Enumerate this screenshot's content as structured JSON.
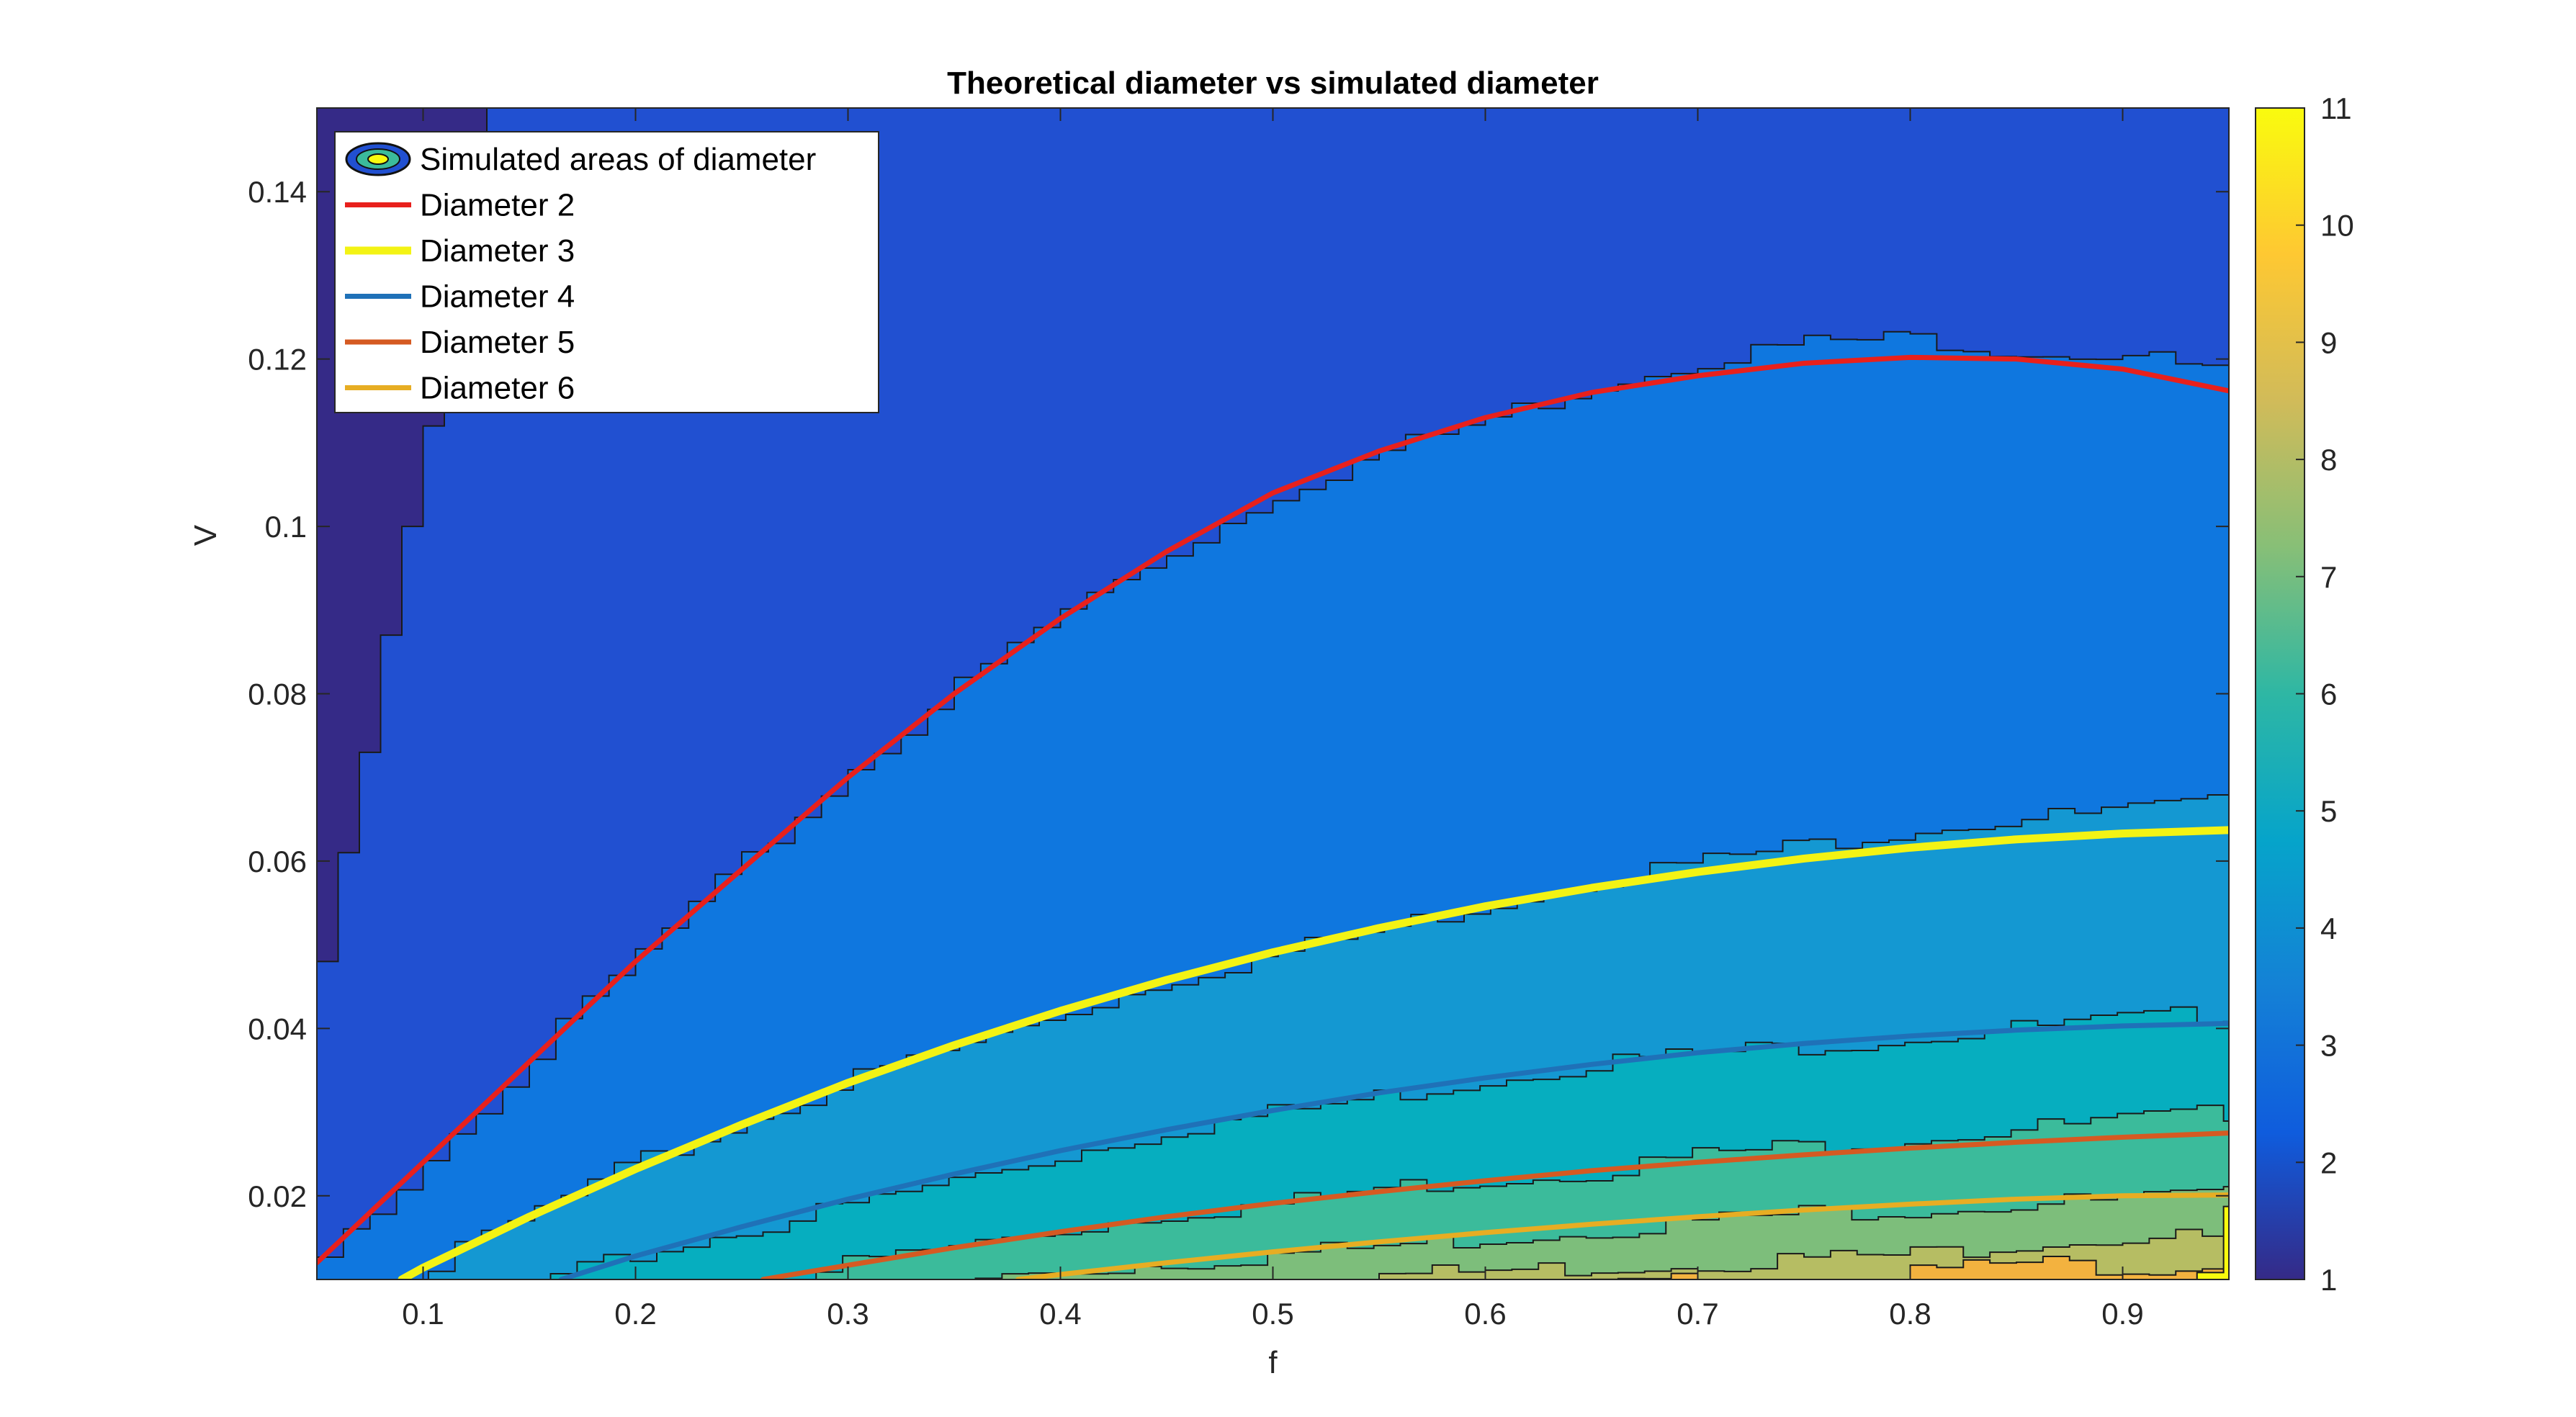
{
  "chart_data": {
    "type": "contourf",
    "title": "Theoretical diameter vs simulated diameter",
    "xlabel": "f",
    "ylabel": "V",
    "xlim": [
      0.05,
      0.95
    ],
    "ylim": [
      0.01,
      0.15
    ],
    "x_ticks": [
      "0.1",
      "0.2",
      "0.3",
      "0.4",
      "0.5",
      "0.6",
      "0.7",
      "0.8",
      "0.9"
    ],
    "x_tick_values": [
      0.1,
      0.2,
      0.3,
      0.4,
      0.5,
      0.6,
      0.7,
      0.8,
      0.9
    ],
    "y_ticks": [
      "0.02",
      "0.04",
      "0.06",
      "0.08",
      "0.1",
      "0.12",
      "0.14"
    ],
    "y_tick_values": [
      0.02,
      0.04,
      0.06,
      0.08,
      0.1,
      0.12,
      0.14
    ],
    "colorbar": {
      "ticks": [
        "1",
        "2",
        "3",
        "4",
        "5",
        "6",
        "7",
        "8",
        "9",
        "10",
        "11"
      ],
      "tick_values": [
        1,
        2,
        3,
        4,
        5,
        6,
        7,
        8,
        9,
        10,
        11
      ],
      "range": [
        1,
        11
      ],
      "colormap": "parula"
    },
    "contour_levels": [
      {
        "level": 1,
        "color": "#352a87"
      },
      {
        "level": 2,
        "color": "#2150d1"
      },
      {
        "level": 3,
        "color": "#0f77df"
      },
      {
        "level": 4,
        "color": "#1498d2"
      },
      {
        "level": 5,
        "color": "#06aebf"
      },
      {
        "level": 6,
        "color": "#3bbb9b"
      },
      {
        "level": 7,
        "color": "#7dbe7b"
      },
      {
        "level": 8,
        "color": "#b6bd63"
      },
      {
        "level": 9,
        "color": "#f3b23f"
      },
      {
        "level": 10,
        "color": "#f7d52c"
      },
      {
        "level": 11,
        "color": "#f9fb0e"
      }
    ],
    "region_boundaries": [
      {
        "level": 2,
        "points": [
          [
            0.05,
            0.048
          ],
          [
            0.06,
            0.061
          ],
          [
            0.07,
            0.073
          ],
          [
            0.08,
            0.087
          ],
          [
            0.09,
            0.1
          ],
          [
            0.1,
            0.112
          ],
          [
            0.11,
            0.127
          ],
          [
            0.12,
            0.14
          ],
          [
            0.13,
            0.15
          ]
        ]
      },
      {
        "level": 3,
        "points": [
          [
            0.05,
            0.012
          ],
          [
            0.1,
            0.025
          ],
          [
            0.15,
            0.037
          ],
          [
            0.2,
            0.049
          ],
          [
            0.25,
            0.06
          ],
          [
            0.3,
            0.071
          ],
          [
            0.35,
            0.081
          ],
          [
            0.4,
            0.09
          ],
          [
            0.45,
            0.097
          ],
          [
            0.5,
            0.104
          ],
          [
            0.55,
            0.109
          ],
          [
            0.6,
            0.113
          ],
          [
            0.65,
            0.117
          ],
          [
            0.7,
            0.12
          ],
          [
            0.75,
            0.122
          ],
          [
            0.8,
            0.1225
          ],
          [
            0.85,
            0.121
          ],
          [
            0.9,
            0.1205
          ],
          [
            0.95,
            0.118
          ]
        ]
      },
      {
        "level": 4,
        "points": [
          [
            0.09,
            0.01
          ],
          [
            0.15,
            0.018
          ],
          [
            0.2,
            0.024
          ],
          [
            0.25,
            0.029
          ],
          [
            0.3,
            0.034
          ],
          [
            0.35,
            0.038
          ],
          [
            0.4,
            0.042
          ],
          [
            0.45,
            0.046
          ],
          [
            0.5,
            0.049
          ],
          [
            0.55,
            0.052
          ],
          [
            0.6,
            0.055
          ],
          [
            0.65,
            0.058
          ],
          [
            0.7,
            0.06
          ],
          [
            0.75,
            0.062
          ],
          [
            0.8,
            0.064
          ],
          [
            0.85,
            0.065
          ],
          [
            0.9,
            0.066
          ],
          [
            0.95,
            0.067
          ]
        ]
      },
      {
        "level": 5,
        "points": [
          [
            0.16,
            0.01
          ],
          [
            0.2,
            0.013
          ],
          [
            0.25,
            0.016
          ],
          [
            0.3,
            0.019
          ],
          [
            0.35,
            0.022
          ],
          [
            0.4,
            0.025
          ],
          [
            0.45,
            0.028
          ],
          [
            0.5,
            0.03
          ],
          [
            0.55,
            0.032
          ],
          [
            0.6,
            0.034
          ],
          [
            0.65,
            0.036
          ],
          [
            0.7,
            0.037
          ],
          [
            0.75,
            0.038
          ],
          [
            0.8,
            0.039
          ],
          [
            0.85,
            0.04
          ],
          [
            0.9,
            0.041
          ],
          [
            0.95,
            0.042
          ]
        ]
      },
      {
        "level": 6,
        "points": [
          [
            0.26,
            0.01
          ],
          [
            0.3,
            0.012
          ],
          [
            0.35,
            0.014
          ],
          [
            0.4,
            0.016
          ],
          [
            0.45,
            0.018
          ],
          [
            0.5,
            0.019
          ],
          [
            0.55,
            0.021
          ],
          [
            0.6,
            0.022
          ],
          [
            0.65,
            0.023
          ],
          [
            0.7,
            0.025
          ],
          [
            0.75,
            0.026
          ],
          [
            0.8,
            0.027
          ],
          [
            0.85,
            0.028
          ],
          [
            0.9,
            0.029
          ],
          [
            0.95,
            0.03
          ]
        ]
      },
      {
        "level": 7,
        "points": [
          [
            0.36,
            0.01
          ],
          [
            0.4,
            0.011
          ],
          [
            0.45,
            0.012
          ],
          [
            0.5,
            0.013
          ],
          [
            0.55,
            0.014
          ],
          [
            0.6,
            0.015
          ],
          [
            0.65,
            0.016
          ],
          [
            0.7,
            0.017
          ],
          [
            0.75,
            0.018
          ],
          [
            0.8,
            0.0185
          ],
          [
            0.85,
            0.019
          ],
          [
            0.9,
            0.0195
          ],
          [
            0.95,
            0.02
          ]
        ]
      },
      {
        "level": 8,
        "points": [
          [
            0.5,
            0.01
          ],
          [
            0.55,
            0.0105
          ],
          [
            0.6,
            0.011
          ],
          [
            0.65,
            0.0115
          ],
          [
            0.7,
            0.012
          ],
          [
            0.75,
            0.0125
          ],
          [
            0.8,
            0.013
          ],
          [
            0.85,
            0.0145
          ],
          [
            0.9,
            0.015
          ],
          [
            0.95,
            0.015
          ]
        ]
      },
      {
        "level": 9,
        "points": [
          [
            0.65,
            0.01
          ],
          [
            0.7,
            0.01
          ],
          [
            0.75,
            0.0105
          ],
          [
            0.8,
            0.011
          ],
          [
            0.85,
            0.012
          ],
          [
            0.9,
            0.0115
          ],
          [
            0.95,
            0.012
          ]
        ]
      },
      {
        "level": 11,
        "points": [
          [
            0.935,
            0.01
          ],
          [
            0.94,
            0.014
          ],
          [
            0.945,
            0.018
          ],
          [
            0.95,
            0.019
          ]
        ]
      }
    ],
    "series": [
      {
        "name": "Diameter 2",
        "color": "#e8201c",
        "points": [
          [
            0.05,
            0.012
          ],
          [
            0.1,
            0.024
          ],
          [
            0.15,
            0.036
          ],
          [
            0.2,
            0.048
          ],
          [
            0.25,
            0.059
          ],
          [
            0.3,
            0.07
          ],
          [
            0.35,
            0.08
          ],
          [
            0.4,
            0.089
          ],
          [
            0.45,
            0.097
          ],
          [
            0.5,
            0.104
          ],
          [
            0.55,
            0.109
          ],
          [
            0.6,
            0.113
          ],
          [
            0.65,
            0.116
          ],
          [
            0.7,
            0.118
          ],
          [
            0.75,
            0.1195
          ],
          [
            0.8,
            0.1202
          ],
          [
            0.85,
            0.12
          ],
          [
            0.9,
            0.1188
          ],
          [
            0.95,
            0.1162
          ]
        ]
      },
      {
        "name": "Diameter 3",
        "color": "#f3f314",
        "points": [
          [
            0.09,
            0.01
          ],
          [
            0.1,
            0.0114
          ],
          [
            0.15,
            0.0175
          ],
          [
            0.2,
            0.0232
          ],
          [
            0.25,
            0.0285
          ],
          [
            0.3,
            0.0335
          ],
          [
            0.35,
            0.038
          ],
          [
            0.4,
            0.0421
          ],
          [
            0.45,
            0.0458
          ],
          [
            0.5,
            0.0491
          ],
          [
            0.55,
            0.052
          ],
          [
            0.6,
            0.0546
          ],
          [
            0.65,
            0.0568
          ],
          [
            0.7,
            0.0587
          ],
          [
            0.75,
            0.0603
          ],
          [
            0.8,
            0.0616
          ],
          [
            0.85,
            0.0626
          ],
          [
            0.9,
            0.0633
          ],
          [
            0.95,
            0.0637
          ]
        ]
      },
      {
        "name": "Diameter 4",
        "color": "#1f71b8",
        "points": [
          [
            0.165,
            0.01
          ],
          [
            0.2,
            0.0128
          ],
          [
            0.25,
            0.0163
          ],
          [
            0.3,
            0.0196
          ],
          [
            0.35,
            0.0226
          ],
          [
            0.4,
            0.0254
          ],
          [
            0.45,
            0.0279
          ],
          [
            0.5,
            0.0302
          ],
          [
            0.55,
            0.0323
          ],
          [
            0.6,
            0.0341
          ],
          [
            0.65,
            0.0357
          ],
          [
            0.7,
            0.0371
          ],
          [
            0.75,
            0.0382
          ],
          [
            0.8,
            0.0391
          ],
          [
            0.85,
            0.0398
          ],
          [
            0.9,
            0.0403
          ],
          [
            0.95,
            0.0406
          ]
        ]
      },
      {
        "name": "Diameter 5",
        "color": "#d55a22",
        "points": [
          [
            0.26,
            0.01
          ],
          [
            0.3,
            0.0117
          ],
          [
            0.35,
            0.0138
          ],
          [
            0.4,
            0.0157
          ],
          [
            0.45,
            0.0175
          ],
          [
            0.5,
            0.0191
          ],
          [
            0.55,
            0.0205
          ],
          [
            0.6,
            0.0218
          ],
          [
            0.65,
            0.023
          ],
          [
            0.7,
            0.024
          ],
          [
            0.75,
            0.0249
          ],
          [
            0.8,
            0.0257
          ],
          [
            0.85,
            0.0264
          ],
          [
            0.9,
            0.027
          ],
          [
            0.95,
            0.0275
          ]
        ]
      },
      {
        "name": "Diameter 6",
        "color": "#e7ad23",
        "points": [
          [
            0.38,
            0.01
          ],
          [
            0.4,
            0.0106
          ],
          [
            0.45,
            0.012
          ],
          [
            0.5,
            0.0133
          ],
          [
            0.55,
            0.0145
          ],
          [
            0.6,
            0.0156
          ],
          [
            0.65,
            0.0166
          ],
          [
            0.7,
            0.0175
          ],
          [
            0.75,
            0.0183
          ],
          [
            0.8,
            0.019
          ],
          [
            0.85,
            0.0196
          ],
          [
            0.9,
            0.02
          ],
          [
            0.95,
            0.0201
          ]
        ]
      }
    ],
    "legend": {
      "position": "top-left",
      "entries": [
        {
          "label": "Simulated areas of diameter",
          "kind": "contour-patch"
        },
        {
          "label": "Diameter 2",
          "color": "#e8201c"
        },
        {
          "label": "Diameter 3",
          "color": "#f3f314"
        },
        {
          "label": "Diameter 4",
          "color": "#1f71b8"
        },
        {
          "label": "Diameter 5",
          "color": "#d55a22"
        },
        {
          "label": "Diameter 6",
          "color": "#e7ad23"
        }
      ]
    }
  }
}
